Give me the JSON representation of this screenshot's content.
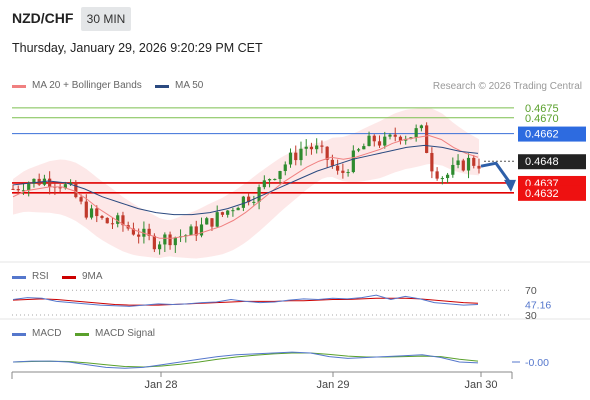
{
  "header": {
    "symbol": "NZD/CHF",
    "timeframe": "30 MIN",
    "datetime": "Thursday, January 29, 2026 9:20:29 PM CET",
    "credit": "Research © 2026 Trading Central"
  },
  "legend": {
    "ma20_label": "MA 20 + Bollinger Bands",
    "ma50_label": "MA 50",
    "rsi_label": "RSI",
    "rsi_ma_label": "9MA",
    "macd_label": "MACD",
    "macd_signal_label": "MACD Signal"
  },
  "colors": {
    "ma20": "#f08080",
    "ma50": "#2b4a80",
    "bollinger_fill": "#fde2e2",
    "bull_candle": "#2e8b2e",
    "bear_candle": "#c0392b",
    "support": "#e00000",
    "resistance": "#7cbf4f",
    "pivot": "#3a6fd8",
    "current_price_box": "#222222",
    "forecast_arrow": "#2e5fa8",
    "rsi_line": "#5577cc",
    "rsi_ma_line": "#cc0000",
    "macd_line": "#5577cc",
    "macd_signal_line": "#5aa02c"
  },
  "chart_data": [
    {
      "type": "candlestick",
      "title": "NZD/CHF",
      "interval": "30 MIN",
      "x_tick_labels": [
        "Jan 28",
        "Jan 29",
        "Jan 30"
      ],
      "y_range": [
        0.4597,
        0.468
      ],
      "levels": [
        {
          "label": "0.4675",
          "value": 0.4675,
          "kind": "resistance"
        },
        {
          "label": "0.4670",
          "value": 0.467,
          "kind": "resistance"
        },
        {
          "label": "0.4662",
          "value": 0.4662,
          "kind": "pivot"
        },
        {
          "label": "0.4648",
          "value": 0.4648,
          "kind": "current"
        },
        {
          "label": "0.4637",
          "value": 0.4637,
          "kind": "support"
        },
        {
          "label": "0.4632",
          "value": 0.4632,
          "kind": "support"
        }
      ],
      "close_path": [
        0.4634,
        0.4637,
        0.4638,
        0.4639,
        0.4637,
        0.4633,
        0.4624,
        0.462,
        0.4617,
        0.4617,
        0.4614,
        0.4611,
        0.4607,
        0.4609,
        0.461,
        0.4611,
        0.4614,
        0.4618,
        0.4621,
        0.4626,
        0.463,
        0.4632,
        0.464,
        0.4645,
        0.465,
        0.4656,
        0.4654,
        0.4649,
        0.464,
        0.4648,
        0.4655,
        0.4659,
        0.4657,
        0.4662,
        0.4661,
        0.4664,
        0.4645,
        0.464,
        0.4644,
        0.4648,
        0.4647
      ],
      "ma20": [
        0.463,
        0.4633,
        0.4634,
        0.4635,
        0.4635,
        0.4633,
        0.4629,
        0.4624,
        0.462,
        0.4616,
        0.4613,
        0.4611,
        0.4609,
        0.4609,
        0.461,
        0.4611,
        0.4613,
        0.4615,
        0.4618,
        0.4622,
        0.4627,
        0.4632,
        0.4637,
        0.4641,
        0.4645,
        0.4648,
        0.465,
        0.4649,
        0.465,
        0.4652,
        0.4654,
        0.4657,
        0.4659,
        0.466,
        0.4661,
        0.4659,
        0.4655,
        0.4652,
        0.465
      ],
      "ma50": [
        0.4636,
        0.4637,
        0.4638,
        0.4637,
        0.4634,
        0.463,
        0.4627,
        0.4624,
        0.4622,
        0.4621,
        0.4621,
        0.4622,
        0.4624,
        0.4627,
        0.4631,
        0.4635,
        0.4639,
        0.4643,
        0.4646,
        0.4649,
        0.4651,
        0.4653,
        0.4655,
        0.4656,
        0.4655,
        0.4653,
        0.4652
      ]
    },
    {
      "type": "line",
      "title": "RSI",
      "y_tick_labels": [
        "70",
        "30"
      ],
      "current_value_label": "47.16",
      "series": [
        {
          "name": "RSI",
          "values": [
            55,
            58,
            57,
            52,
            50,
            48,
            46,
            45,
            44,
            46,
            48,
            47,
            48,
            50,
            51,
            55,
            52,
            50,
            51,
            54,
            56,
            55,
            57,
            56,
            58,
            62,
            55,
            60,
            56,
            50,
            48,
            46,
            47
          ]
        },
        {
          "name": "9MA",
          "values": [
            54,
            55,
            56,
            55,
            53,
            51,
            49,
            47,
            46,
            46,
            46,
            47,
            48,
            49,
            50,
            51,
            52,
            52,
            52,
            53,
            53,
            54,
            55,
            55,
            56,
            57,
            57,
            57,
            56,
            54,
            52,
            50,
            49
          ]
        }
      ]
    },
    {
      "type": "line",
      "title": "MACD",
      "current_value_label": "-0.00",
      "series": [
        {
          "name": "MACD",
          "values": [
            0.0,
            0.1,
            0.1,
            0.0,
            -0.3,
            -0.6,
            -0.7,
            -0.6,
            -0.3,
            0.0,
            0.3,
            0.6,
            0.8,
            0.9,
            1.0,
            1.1,
            1.0,
            0.6,
            0.4,
            0.5,
            0.6,
            0.7,
            0.8,
            0.5,
            0.0,
            -0.1
          ]
        },
        {
          "name": "MACD Signal",
          "values": [
            0.0,
            0.05,
            0.08,
            0.05,
            -0.1,
            -0.3,
            -0.5,
            -0.55,
            -0.45,
            -0.25,
            0.0,
            0.3,
            0.55,
            0.75,
            0.9,
            1.0,
            1.0,
            0.85,
            0.65,
            0.55,
            0.55,
            0.6,
            0.65,
            0.6,
            0.3,
            0.1
          ]
        }
      ]
    }
  ]
}
